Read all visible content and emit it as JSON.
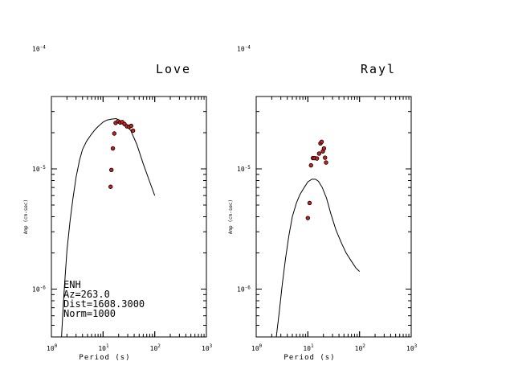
{
  "chart_data": [
    {
      "type": "scatter",
      "title": "Love",
      "xlabel": "Period (s)",
      "ylabel": "Amp (cm-sec)",
      "x_scale": "log",
      "y_scale": "log",
      "xlim": [
        1,
        1000
      ],
      "ylim": [
        4e-07,
        4e-05
      ],
      "x_ticks": [
        {
          "base": "10",
          "exp": "0"
        },
        {
          "base": "10",
          "exp": "1"
        },
        {
          "base": "10",
          "exp": "2"
        },
        {
          "base": "10",
          "exp": "3"
        }
      ],
      "y_ticks": [
        {
          "base": "10",
          "exp": "-6"
        },
        {
          "base": "10",
          "exp": "-5"
        },
        {
          "base": "10",
          "exp": "-4"
        }
      ],
      "annotations": [
        "ENH",
        "Az=263.0",
        "Dist=1608.3000",
        "Norm=1000"
      ],
      "series": [
        {
          "kind": "line",
          "points": [
            [
              1.57,
              4e-07
            ],
            [
              1.7,
              7.5e-07
            ],
            [
              1.85,
              1.3e-06
            ],
            [
              2.0,
              2.1e-06
            ],
            [
              2.3,
              3.7e-06
            ],
            [
              2.6,
              5.6e-06
            ],
            [
              3.0,
              8.5e-06
            ],
            [
              3.5,
              1.18e-05
            ],
            [
              4.0,
              1.45e-05
            ],
            [
              4.8,
              1.7e-05
            ],
            [
              6.0,
              1.95e-05
            ],
            [
              7.0,
              2.12e-05
            ],
            [
              8.0,
              2.25e-05
            ],
            [
              10.0,
              2.45e-05
            ],
            [
              12.0,
              2.55e-05
            ],
            [
              15.0,
              2.6e-05
            ],
            [
              18.0,
              2.62e-05
            ],
            [
              22.0,
              2.5e-05
            ],
            [
              27.0,
              2.3e-05
            ],
            [
              34.0,
              2.1e-05
            ],
            [
              45.0,
              1.6e-05
            ],
            [
              60.0,
              1.1e-05
            ],
            [
              80.0,
              7.8e-06
            ],
            [
              100.0,
              6e-06
            ]
          ]
        },
        {
          "kind": "points",
          "color": "#cc2020",
          "points": [
            [
              14.0,
              7.1e-06
            ],
            [
              14.5,
              9.8e-06
            ],
            [
              15.5,
              1.48e-05
            ],
            [
              16.5,
              1.97e-05
            ],
            [
              17.5,
              2.41e-05
            ],
            [
              19.5,
              2.49e-05
            ],
            [
              21.5,
              2.43e-05
            ],
            [
              23.5,
              2.45e-05
            ],
            [
              26.0,
              2.36e-05
            ],
            [
              29.0,
              2.26e-05
            ],
            [
              32.0,
              2.24e-05
            ],
            [
              35.0,
              2.28e-05
            ],
            [
              38.0,
              2.08e-05
            ]
          ]
        }
      ]
    },
    {
      "type": "scatter",
      "title": "Rayl",
      "xlabel": "Period (s)",
      "ylabel": "Amp (cm-sec)",
      "x_scale": "log",
      "y_scale": "log",
      "xlim": [
        1,
        1000
      ],
      "ylim": [
        4e-07,
        4e-05
      ],
      "x_ticks": [
        {
          "base": "10",
          "exp": "0"
        },
        {
          "base": "10",
          "exp": "1"
        },
        {
          "base": "10",
          "exp": "2"
        },
        {
          "base": "10",
          "exp": "3"
        }
      ],
      "y_ticks": [
        {
          "base": "10",
          "exp": "-6"
        },
        {
          "base": "10",
          "exp": "-5"
        },
        {
          "base": "10",
          "exp": "-4"
        }
      ],
      "series": [
        {
          "kind": "line",
          "points": [
            [
              2.45,
              4e-07
            ],
            [
              2.8,
              6.5e-07
            ],
            [
              3.2,
              1.1e-06
            ],
            [
              3.7,
              1.8e-06
            ],
            [
              4.3,
              2.8e-06
            ],
            [
              5.0,
              4e-06
            ],
            [
              6.0,
              5.2e-06
            ],
            [
              7.0,
              6.1e-06
            ],
            [
              8.5,
              7e-06
            ],
            [
              10.0,
              7.8e-06
            ],
            [
              12.0,
              8.2e-06
            ],
            [
              14.0,
              8.2e-06
            ],
            [
              16.0,
              7.9e-06
            ],
            [
              19.0,
              7e-06
            ],
            [
              23.0,
              5.7e-06
            ],
            [
              28.0,
              4.2e-06
            ],
            [
              35.0,
              3.1e-06
            ],
            [
              45.0,
              2.4e-06
            ],
            [
              55.0,
              2e-06
            ],
            [
              70.0,
              1.7e-06
            ],
            [
              85.0,
              1.5e-06
            ],
            [
              100.0,
              1.4e-06
            ]
          ]
        },
        {
          "kind": "points",
          "color": "#cc2020",
          "points": [
            [
              10.0,
              3.9e-06
            ],
            [
              10.8,
              5.2e-06
            ],
            [
              11.5,
              1.07e-05
            ],
            [
              12.5,
              1.23e-05
            ],
            [
              13.5,
              1.23e-05
            ],
            [
              15.0,
              1.22e-05
            ],
            [
              16.5,
              1.34e-05
            ],
            [
              17.5,
              1.63e-05
            ],
            [
              18.5,
              1.68e-05
            ],
            [
              19.5,
              1.4e-05
            ],
            [
              20.5,
              1.48e-05
            ],
            [
              21.5,
              1.24e-05
            ],
            [
              22.5,
              1.13e-05
            ]
          ]
        }
      ]
    }
  ]
}
